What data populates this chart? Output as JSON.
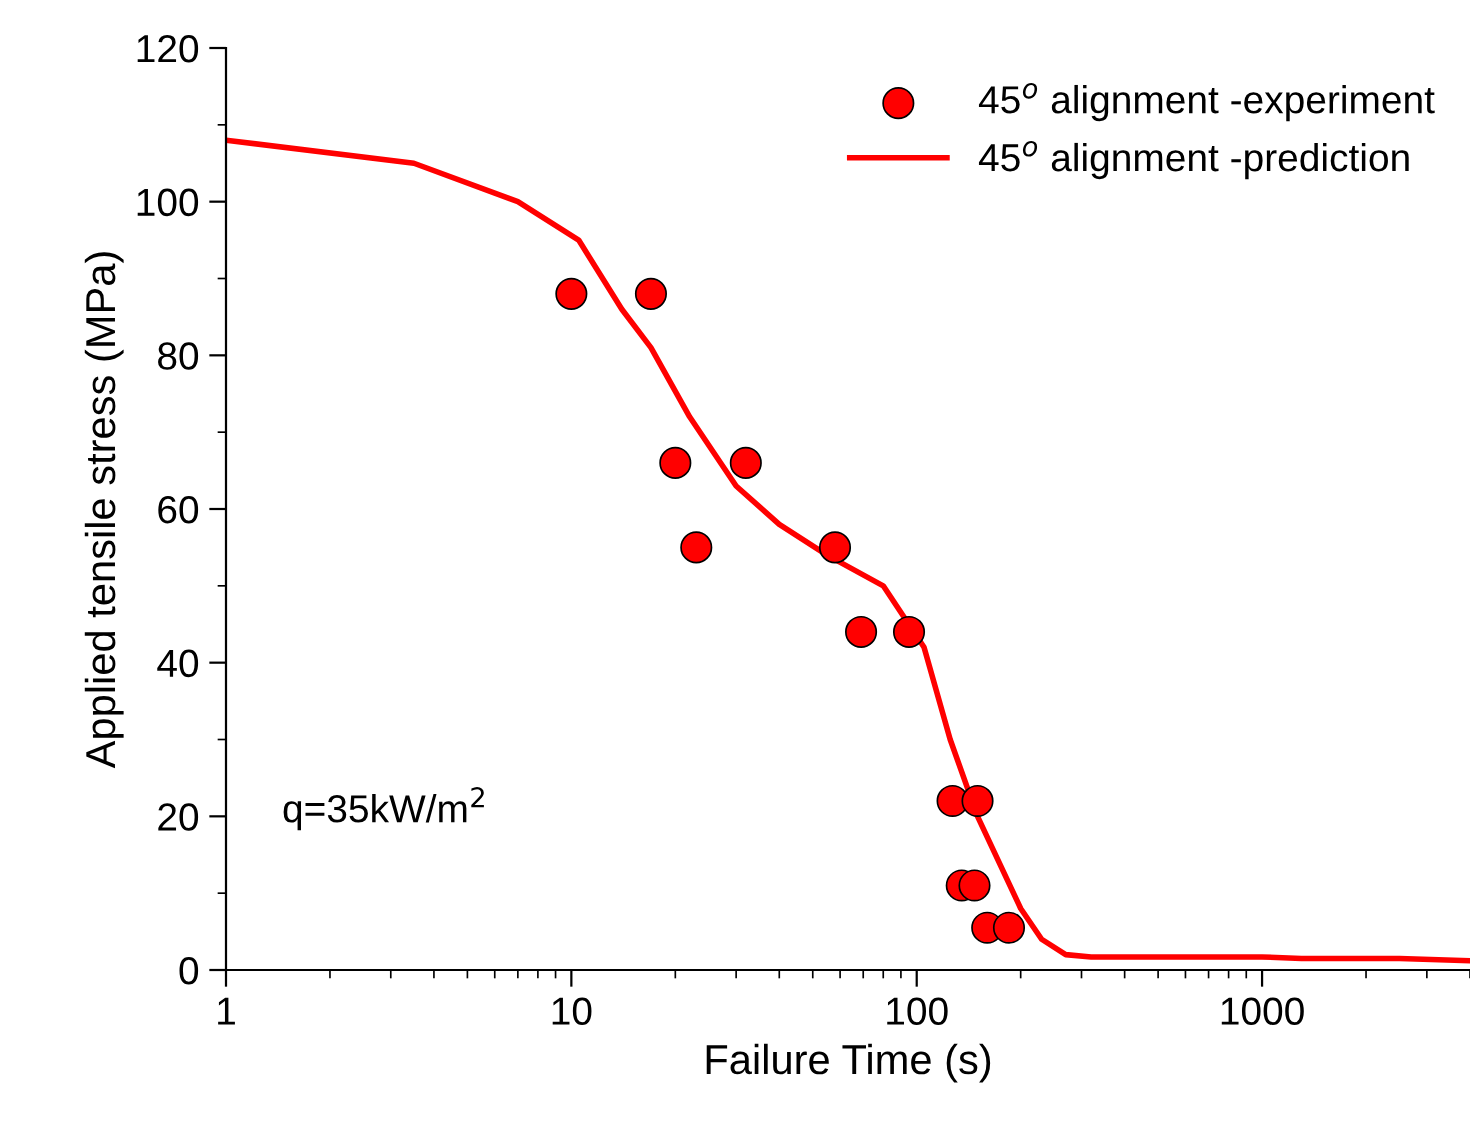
{
  "chart_data": {
    "type": "scatter",
    "xlabel": "Failure Time (s)",
    "ylabel": "Applied tensile stress (MPa)",
    "log": "x",
    "xlim": [
      1,
      4000
    ],
    "ylim": [
      0,
      120
    ],
    "xticks": [
      1,
      10,
      100,
      1000
    ],
    "yticks": [
      0,
      20,
      40,
      60,
      80,
      100,
      120
    ],
    "grid": false,
    "legend": "top right",
    "annotations": [
      "q=35kW/m$^{2}$"
    ],
    "series": [
      {
        "name": "45$^{o}$ alignment -experiment",
        "marker": "circle",
        "color": "#ff0000",
        "x": [
          10,
          17,
          20,
          32,
          23,
          58,
          69,
          95,
          127,
          150,
          135,
          147,
          160,
          185
        ],
        "values": [
          88,
          88,
          66,
          66,
          55,
          55,
          44,
          44,
          22,
          22,
          11,
          11,
          5.5,
          5.5
        ]
      },
      {
        "name": "45$^{o}$ alignment -prediction",
        "type": "line",
        "marker": "none",
        "line_style": "solid",
        "color": "#ff0000",
        "x": [
          1,
          3.5,
          7,
          10.5,
          14,
          17,
          22,
          30,
          40,
          55,
          80,
          105,
          125,
          150,
          200,
          230,
          270,
          320,
          1000,
          1300,
          2500,
          4000
        ],
        "values": [
          108,
          105,
          100,
          95,
          86,
          81,
          72,
          63,
          58,
          54,
          50,
          42,
          30,
          20,
          8,
          4,
          2,
          1.7,
          1.7,
          1.5,
          1.5,
          1.2
        ]
      }
    ]
  }
}
